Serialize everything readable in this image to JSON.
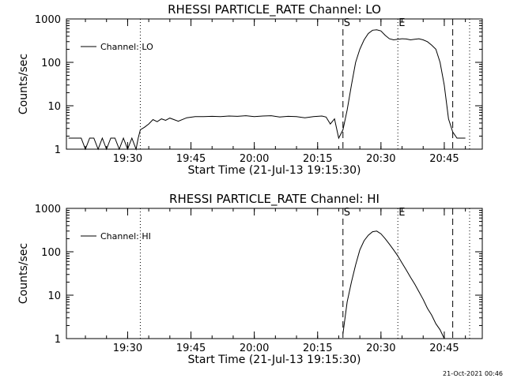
{
  "footer_stamp": "21-Oct-2021 00:46",
  "chart_data": [
    {
      "type": "line",
      "title": "RHESSI PARTICLE_RATE Channel: LO",
      "xlabel": "Start Time (21-Jul-13 19:15:30)",
      "ylabel": "Counts/sec",
      "yscale": "log",
      "ylim": [
        1,
        1000
      ],
      "xlim": [
        "19:15:30",
        "20:54:00"
      ],
      "xticks": [
        "19:30",
        "19:45",
        "20:00",
        "20:15",
        "20:30",
        "20:45"
      ],
      "yticks": [
        "1",
        "10",
        "100",
        "1000"
      ],
      "legend": {
        "placement": "top-left",
        "label": "Channel: LO"
      },
      "markers": [
        {
          "time": "19:33:00",
          "style": "dotted",
          "label": ""
        },
        {
          "time": "20:21:00",
          "style": "dashed",
          "label": "S"
        },
        {
          "time": "20:34:00",
          "style": "dotted",
          "label": "E"
        },
        {
          "time": "20:47:00",
          "style": "dashed",
          "label": ""
        },
        {
          "time": "20:51:00",
          "style": "dotted",
          "label": ""
        }
      ],
      "series": [
        {
          "name": "Channel: LO",
          "x": [
            "19:16:00",
            "19:19:00",
            "19:20:00",
            "19:21:00",
            "19:22:00",
            "19:23:00",
            "19:24:00",
            "19:25:00",
            "19:26:00",
            "19:27:00",
            "19:28:00",
            "19:29:00",
            "19:30:00",
            "19:31:00",
            "19:32:00",
            "19:32:30",
            "19:33:00",
            "19:34:00",
            "19:35:00",
            "19:36:00",
            "19:37:00",
            "19:38:00",
            "19:39:00",
            "19:40:00",
            "19:42:00",
            "19:44:00",
            "19:46:00",
            "19:48:00",
            "19:50:00",
            "19:52:00",
            "19:54:00",
            "19:56:00",
            "19:58:00",
            "20:00:00",
            "20:02:00",
            "20:04:00",
            "20:06:00",
            "20:08:00",
            "20:10:00",
            "20:12:00",
            "20:14:00",
            "20:16:00",
            "20:17:00",
            "20:18:00",
            "20:19:00",
            "20:20:00",
            "20:21:00",
            "20:22:00",
            "20:23:00",
            "20:24:00",
            "20:25:00",
            "20:26:00",
            "20:27:00",
            "20:28:00",
            "20:29:00",
            "20:30:00",
            "20:31:00",
            "20:32:00",
            "20:33:00",
            "20:34:00",
            "20:35:00",
            "20:36:00",
            "20:37:00",
            "20:38:00",
            "20:39:00",
            "20:40:00",
            "20:41:00",
            "20:42:00",
            "20:43:00",
            "20:44:00",
            "20:45:00",
            "20:46:00",
            "20:47:00",
            "20:48:00",
            "20:49:00",
            "20:50:00"
          ],
          "y": [
            1.8,
            1.8,
            1.0,
            1.8,
            1.8,
            1.0,
            1.8,
            1.0,
            1.8,
            1.8,
            1.0,
            1.8,
            1.0,
            1.8,
            1.0,
            1.8,
            2.8,
            3.2,
            3.8,
            4.8,
            4.3,
            5.0,
            4.6,
            5.2,
            4.4,
            5.3,
            5.6,
            5.6,
            5.7,
            5.6,
            5.8,
            5.7,
            5.9,
            5.6,
            5.8,
            5.9,
            5.5,
            5.7,
            5.6,
            5.3,
            5.6,
            5.8,
            5.5,
            3.8,
            5.0,
            1.8,
            2.8,
            8,
            30,
            100,
            200,
            330,
            460,
            550,
            560,
            530,
            420,
            350,
            330,
            340,
            350,
            345,
            330,
            340,
            350,
            330,
            300,
            250,
            200,
            100,
            30,
            5,
            2.5,
            1.8,
            1.8,
            1.8
          ]
        }
      ]
    },
    {
      "type": "line",
      "title": "RHESSI PARTICLE_RATE Channel: HI",
      "xlabel": "Start Time (21-Jul-13 19:15:30)",
      "ylabel": "Counts/sec",
      "yscale": "log",
      "ylim": [
        1,
        1000
      ],
      "xlim": [
        "19:15:30",
        "20:54:00"
      ],
      "xticks": [
        "19:30",
        "19:45",
        "20:00",
        "20:15",
        "20:30",
        "20:45"
      ],
      "yticks": [
        "1",
        "10",
        "100",
        "1000"
      ],
      "legend": {
        "placement": "top-left",
        "label": "Channel: HI"
      },
      "markers": [
        {
          "time": "19:33:00",
          "style": "dotted",
          "label": ""
        },
        {
          "time": "20:21:00",
          "style": "dashed",
          "label": "S"
        },
        {
          "time": "20:34:00",
          "style": "dotted",
          "label": "E"
        },
        {
          "time": "20:47:00",
          "style": "dashed",
          "label": ""
        },
        {
          "time": "20:51:00",
          "style": "dotted",
          "label": ""
        }
      ],
      "series": [
        {
          "name": "Channel: HI",
          "x": [
            "20:21:00",
            "20:21:30",
            "20:22:00",
            "20:23:00",
            "20:24:00",
            "20:25:00",
            "20:26:00",
            "20:27:00",
            "20:28:00",
            "20:29:00",
            "20:30:00",
            "20:31:00",
            "20:32:00",
            "20:33:00",
            "20:34:00",
            "20:35:00",
            "20:36:00",
            "20:37:00",
            "20:38:00",
            "20:39:00",
            "20:40:00",
            "20:41:00",
            "20:42:00",
            "20:43:00",
            "20:44:00",
            "20:45:00"
          ],
          "y": [
            1.3,
            3,
            7,
            20,
            50,
            110,
            180,
            240,
            290,
            300,
            260,
            200,
            150,
            110,
            80,
            55,
            38,
            26,
            18,
            12,
            8,
            5,
            3.5,
            2.2,
            1.6,
            1.0
          ]
        }
      ]
    }
  ]
}
